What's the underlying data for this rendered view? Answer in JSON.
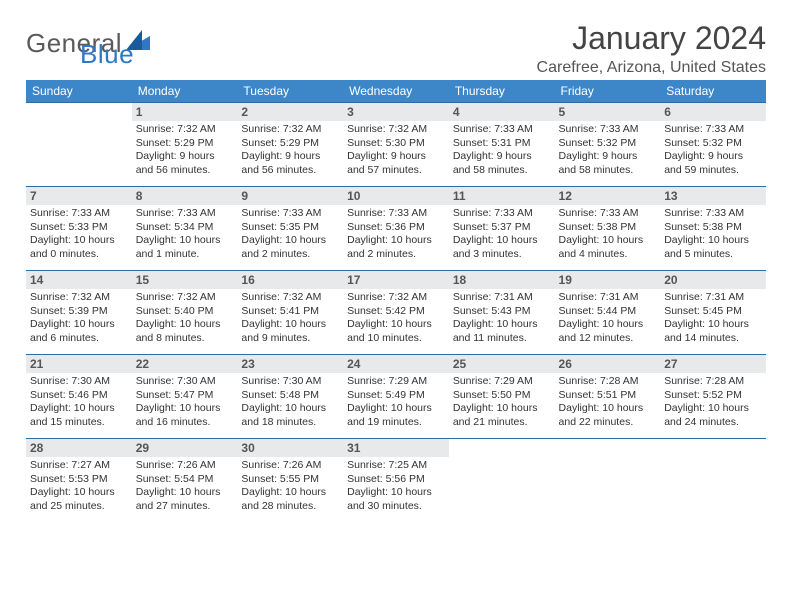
{
  "logo": {
    "general": "General",
    "blue": "Blue"
  },
  "header": {
    "title": "January 2024",
    "location": "Carefree, Arizona, United States"
  },
  "colors": {
    "header_bg": "#3d87c9",
    "header_text": "#ffffff",
    "daynum_bg": "#e7e9ea",
    "rule": "#2d6aa8",
    "logo_gray": "#5a5a5a",
    "logo_blue": "#2d78c7"
  },
  "weekdays": [
    "Sunday",
    "Monday",
    "Tuesday",
    "Wednesday",
    "Thursday",
    "Friday",
    "Saturday"
  ],
  "weeks": [
    [
      null,
      {
        "n": "1",
        "sr": "Sunrise: 7:32 AM",
        "ss": "Sunset: 5:29 PM",
        "dl1": "Daylight: 9 hours",
        "dl2": "and 56 minutes."
      },
      {
        "n": "2",
        "sr": "Sunrise: 7:32 AM",
        "ss": "Sunset: 5:29 PM",
        "dl1": "Daylight: 9 hours",
        "dl2": "and 56 minutes."
      },
      {
        "n": "3",
        "sr": "Sunrise: 7:32 AM",
        "ss": "Sunset: 5:30 PM",
        "dl1": "Daylight: 9 hours",
        "dl2": "and 57 minutes."
      },
      {
        "n": "4",
        "sr": "Sunrise: 7:33 AM",
        "ss": "Sunset: 5:31 PM",
        "dl1": "Daylight: 9 hours",
        "dl2": "and 58 minutes."
      },
      {
        "n": "5",
        "sr": "Sunrise: 7:33 AM",
        "ss": "Sunset: 5:32 PM",
        "dl1": "Daylight: 9 hours",
        "dl2": "and 58 minutes."
      },
      {
        "n": "6",
        "sr": "Sunrise: 7:33 AM",
        "ss": "Sunset: 5:32 PM",
        "dl1": "Daylight: 9 hours",
        "dl2": "and 59 minutes."
      }
    ],
    [
      {
        "n": "7",
        "sr": "Sunrise: 7:33 AM",
        "ss": "Sunset: 5:33 PM",
        "dl1": "Daylight: 10 hours",
        "dl2": "and 0 minutes."
      },
      {
        "n": "8",
        "sr": "Sunrise: 7:33 AM",
        "ss": "Sunset: 5:34 PM",
        "dl1": "Daylight: 10 hours",
        "dl2": "and 1 minute."
      },
      {
        "n": "9",
        "sr": "Sunrise: 7:33 AM",
        "ss": "Sunset: 5:35 PM",
        "dl1": "Daylight: 10 hours",
        "dl2": "and 2 minutes."
      },
      {
        "n": "10",
        "sr": "Sunrise: 7:33 AM",
        "ss": "Sunset: 5:36 PM",
        "dl1": "Daylight: 10 hours",
        "dl2": "and 2 minutes."
      },
      {
        "n": "11",
        "sr": "Sunrise: 7:33 AM",
        "ss": "Sunset: 5:37 PM",
        "dl1": "Daylight: 10 hours",
        "dl2": "and 3 minutes."
      },
      {
        "n": "12",
        "sr": "Sunrise: 7:33 AM",
        "ss": "Sunset: 5:38 PM",
        "dl1": "Daylight: 10 hours",
        "dl2": "and 4 minutes."
      },
      {
        "n": "13",
        "sr": "Sunrise: 7:33 AM",
        "ss": "Sunset: 5:38 PM",
        "dl1": "Daylight: 10 hours",
        "dl2": "and 5 minutes."
      }
    ],
    [
      {
        "n": "14",
        "sr": "Sunrise: 7:32 AM",
        "ss": "Sunset: 5:39 PM",
        "dl1": "Daylight: 10 hours",
        "dl2": "and 6 minutes."
      },
      {
        "n": "15",
        "sr": "Sunrise: 7:32 AM",
        "ss": "Sunset: 5:40 PM",
        "dl1": "Daylight: 10 hours",
        "dl2": "and 8 minutes."
      },
      {
        "n": "16",
        "sr": "Sunrise: 7:32 AM",
        "ss": "Sunset: 5:41 PM",
        "dl1": "Daylight: 10 hours",
        "dl2": "and 9 minutes."
      },
      {
        "n": "17",
        "sr": "Sunrise: 7:32 AM",
        "ss": "Sunset: 5:42 PM",
        "dl1": "Daylight: 10 hours",
        "dl2": "and 10 minutes."
      },
      {
        "n": "18",
        "sr": "Sunrise: 7:31 AM",
        "ss": "Sunset: 5:43 PM",
        "dl1": "Daylight: 10 hours",
        "dl2": "and 11 minutes."
      },
      {
        "n": "19",
        "sr": "Sunrise: 7:31 AM",
        "ss": "Sunset: 5:44 PM",
        "dl1": "Daylight: 10 hours",
        "dl2": "and 12 minutes."
      },
      {
        "n": "20",
        "sr": "Sunrise: 7:31 AM",
        "ss": "Sunset: 5:45 PM",
        "dl1": "Daylight: 10 hours",
        "dl2": "and 14 minutes."
      }
    ],
    [
      {
        "n": "21",
        "sr": "Sunrise: 7:30 AM",
        "ss": "Sunset: 5:46 PM",
        "dl1": "Daylight: 10 hours",
        "dl2": "and 15 minutes."
      },
      {
        "n": "22",
        "sr": "Sunrise: 7:30 AM",
        "ss": "Sunset: 5:47 PM",
        "dl1": "Daylight: 10 hours",
        "dl2": "and 16 minutes."
      },
      {
        "n": "23",
        "sr": "Sunrise: 7:30 AM",
        "ss": "Sunset: 5:48 PM",
        "dl1": "Daylight: 10 hours",
        "dl2": "and 18 minutes."
      },
      {
        "n": "24",
        "sr": "Sunrise: 7:29 AM",
        "ss": "Sunset: 5:49 PM",
        "dl1": "Daylight: 10 hours",
        "dl2": "and 19 minutes."
      },
      {
        "n": "25",
        "sr": "Sunrise: 7:29 AM",
        "ss": "Sunset: 5:50 PM",
        "dl1": "Daylight: 10 hours",
        "dl2": "and 21 minutes."
      },
      {
        "n": "26",
        "sr": "Sunrise: 7:28 AM",
        "ss": "Sunset: 5:51 PM",
        "dl1": "Daylight: 10 hours",
        "dl2": "and 22 minutes."
      },
      {
        "n": "27",
        "sr": "Sunrise: 7:28 AM",
        "ss": "Sunset: 5:52 PM",
        "dl1": "Daylight: 10 hours",
        "dl2": "and 24 minutes."
      }
    ],
    [
      {
        "n": "28",
        "sr": "Sunrise: 7:27 AM",
        "ss": "Sunset: 5:53 PM",
        "dl1": "Daylight: 10 hours",
        "dl2": "and 25 minutes."
      },
      {
        "n": "29",
        "sr": "Sunrise: 7:26 AM",
        "ss": "Sunset: 5:54 PM",
        "dl1": "Daylight: 10 hours",
        "dl2": "and 27 minutes."
      },
      {
        "n": "30",
        "sr": "Sunrise: 7:26 AM",
        "ss": "Sunset: 5:55 PM",
        "dl1": "Daylight: 10 hours",
        "dl2": "and 28 minutes."
      },
      {
        "n": "31",
        "sr": "Sunrise: 7:25 AM",
        "ss": "Sunset: 5:56 PM",
        "dl1": "Daylight: 10 hours",
        "dl2": "and 30 minutes."
      },
      null,
      null,
      null
    ]
  ]
}
